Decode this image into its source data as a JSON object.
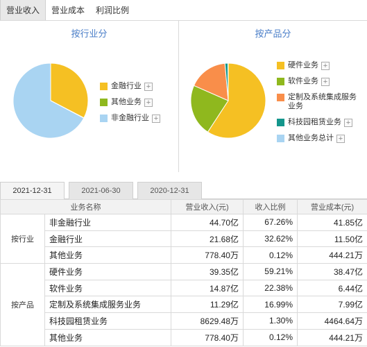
{
  "top_tabs": [
    {
      "label": "营业收入",
      "active": true
    },
    {
      "label": "营业成本",
      "active": false
    },
    {
      "label": "利润比例",
      "active": false
    }
  ],
  "industry_panel": {
    "title": "按行业分",
    "legend": [
      {
        "label": "金融行业",
        "color": "#f5c023"
      },
      {
        "label": "其他业务",
        "color": "#8fb81e"
      },
      {
        "label": "非金融行业",
        "color": "#a9d4f2"
      }
    ]
  },
  "product_panel": {
    "title": "按产品分",
    "legend": [
      {
        "label": "硬件业务",
        "color": "#f5c023"
      },
      {
        "label": "软件业务",
        "color": "#8fb81e"
      },
      {
        "label": "定制及系统集成服务业务",
        "color": "#f98e4a"
      },
      {
        "label": "科技园租赁业务",
        "color": "#14968c"
      },
      {
        "label": "其他业务总计",
        "color": "#a9d4f2"
      }
    ]
  },
  "date_tabs": [
    {
      "label": "2021-12-31",
      "active": true
    },
    {
      "label": "2021-06-30",
      "active": false
    },
    {
      "label": "2020-12-31",
      "active": false
    }
  ],
  "table": {
    "headers": [
      "业务名称",
      "营业收入(元)",
      "收入比例",
      "营业成本(元)"
    ],
    "groups": [
      {
        "name": "按行业",
        "rows": [
          {
            "name": "非金融行业",
            "revenue": "44.70亿",
            "ratio": "67.26%",
            "cost": "41.85亿"
          },
          {
            "name": "金融行业",
            "revenue": "21.68亿",
            "ratio": "32.62%",
            "cost": "11.50亿"
          },
          {
            "name": "其他业务",
            "revenue": "778.40万",
            "ratio": "0.12%",
            "cost": "444.21万"
          }
        ]
      },
      {
        "name": "按产品",
        "rows": [
          {
            "name": "硬件业务",
            "revenue": "39.35亿",
            "ratio": "59.21%",
            "cost": "38.47亿"
          },
          {
            "name": "软件业务",
            "revenue": "14.87亿",
            "ratio": "22.38%",
            "cost": "6.44亿"
          },
          {
            "name": "定制及系统集成服务业务",
            "revenue": "11.29亿",
            "ratio": "16.99%",
            "cost": "7.99亿"
          },
          {
            "name": "科技园租赁业务",
            "revenue": "8629.48万",
            "ratio": "1.30%",
            "cost": "4464.64万"
          },
          {
            "name": "其他业务",
            "revenue": "778.40万",
            "ratio": "0.12%",
            "cost": "444.21万"
          }
        ]
      }
    ]
  },
  "chart_data": [
    {
      "type": "pie",
      "title": "按行业分",
      "categories": [
        "金融行业",
        "其他业务",
        "非金融行业"
      ],
      "values": [
        32.62,
        0.12,
        67.26
      ],
      "colors": [
        "#f5c023",
        "#8fb81e",
        "#a9d4f2"
      ]
    },
    {
      "type": "pie",
      "title": "按产品分",
      "categories": [
        "硬件业务",
        "软件业务",
        "定制及系统集成服务业务",
        "科技园租赁业务",
        "其他业务总计"
      ],
      "values": [
        59.21,
        22.38,
        16.99,
        1.3,
        0.12
      ],
      "colors": [
        "#f5c023",
        "#8fb81e",
        "#f98e4a",
        "#14968c",
        "#a9d4f2"
      ]
    }
  ]
}
